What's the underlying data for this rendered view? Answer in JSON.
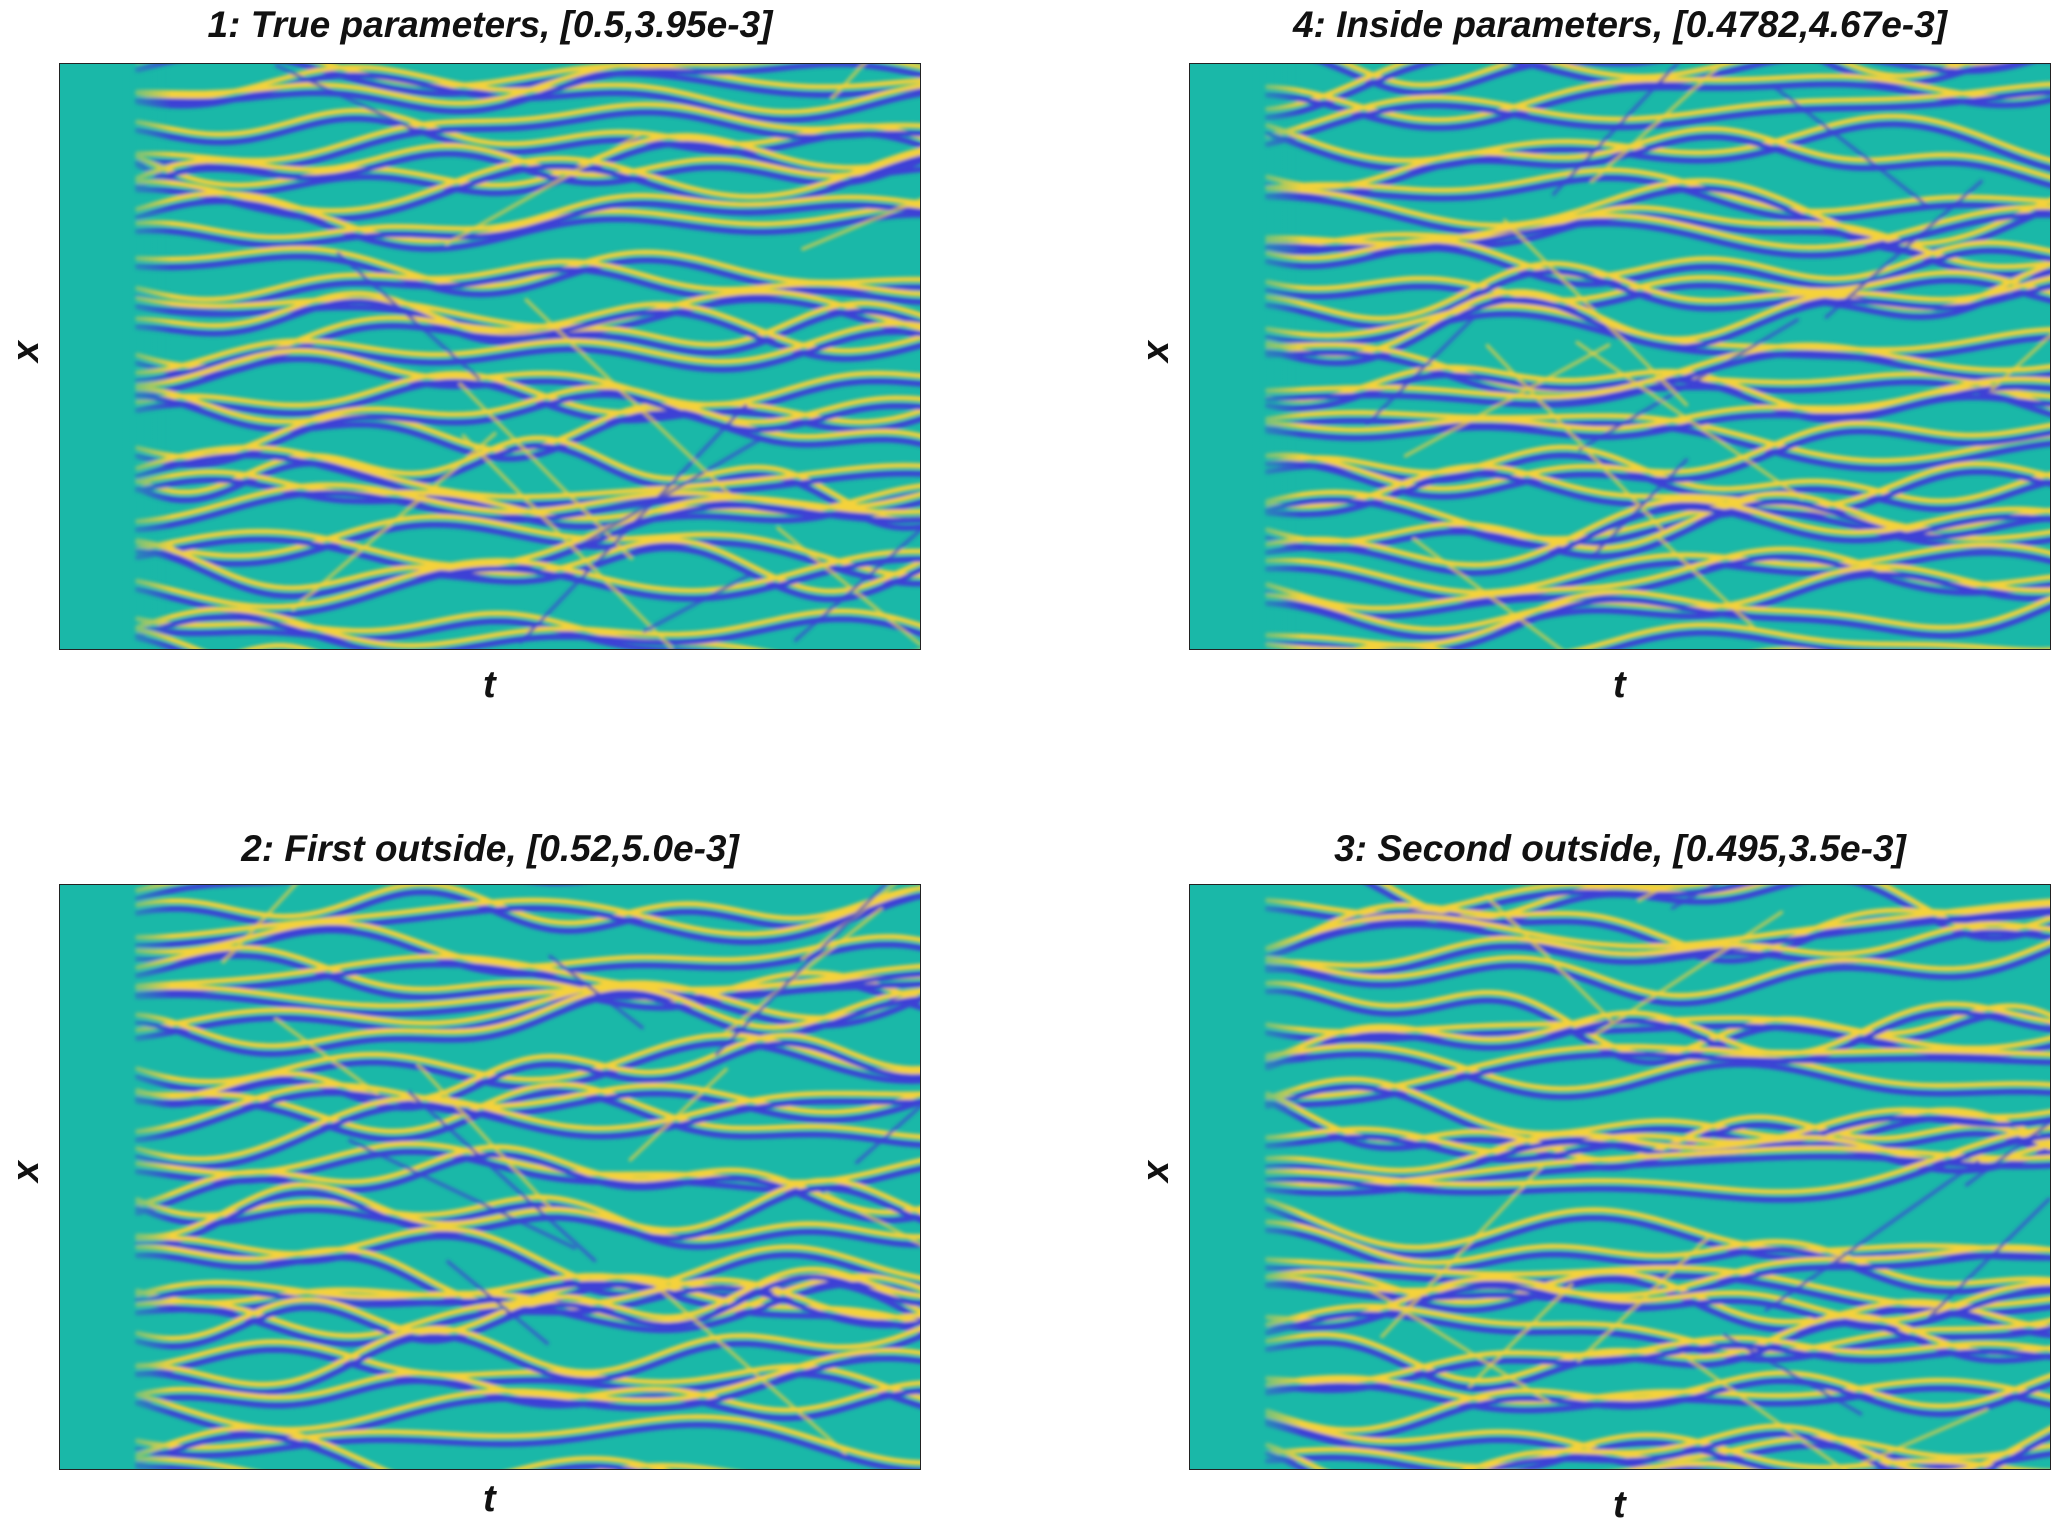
{
  "chart_data": [
    {
      "type": "heatmap",
      "title": "1: True parameters, [0.5,3.95e-3]",
      "xlabel": "t",
      "ylabel": "x",
      "parameters": [
        0.5,
        0.00395
      ],
      "colormap": "parula",
      "ticks": "none",
      "seed": 11
    },
    {
      "type": "heatmap",
      "title": "4: Inside parameters, [0.4782,4.67e-3]",
      "xlabel": "t",
      "ylabel": "x",
      "parameters": [
        0.4782,
        0.00467
      ],
      "colormap": "parula",
      "ticks": "none",
      "seed": 27
    },
    {
      "type": "heatmap",
      "title": "2: First outside, [0.52,5.0e-3]",
      "xlabel": "t",
      "ylabel": "x",
      "parameters": [
        0.52,
        0.005
      ],
      "colormap": "parula",
      "ticks": "none",
      "seed": 43
    },
    {
      "type": "heatmap",
      "title": "3: Second outside, [0.495,3.5e-3]",
      "xlabel": "t",
      "ylabel": "x",
      "parameters": [
        0.495,
        0.0035
      ],
      "colormap": "parula",
      "ticks": "none",
      "seed": 59
    }
  ],
  "colors": {
    "background_teal": "#1ab8a8",
    "stripe_yellow": "#f5d23a",
    "stripe_blue": "#3d3fd6",
    "mid_green": "#6cc86a"
  }
}
